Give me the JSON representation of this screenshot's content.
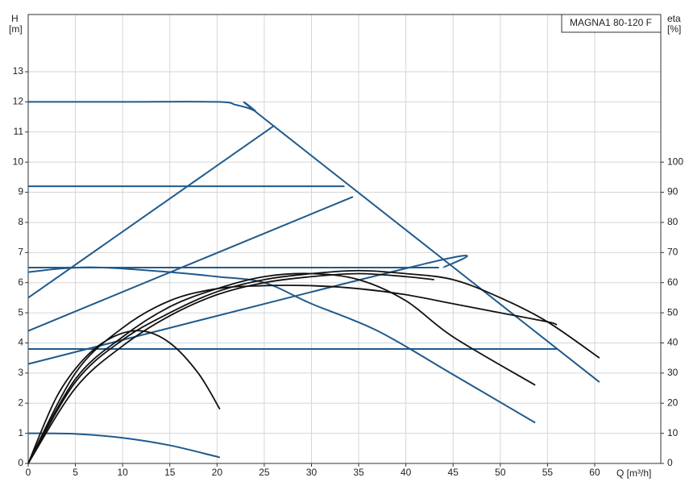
{
  "chart_data": {
    "type": "line",
    "title": "MAGNA1 80-120 F",
    "y_label": [
      "H",
      "[m]"
    ],
    "y2_label": [
      "eta",
      "[%]"
    ],
    "x_label": "Q [m³/h]",
    "xlim": [
      0,
      67
    ],
    "xticks": [
      0,
      5,
      10,
      15,
      20,
      25,
      30,
      35,
      40,
      45,
      50,
      55,
      60
    ],
    "ylim": [
      0,
      14.9
    ],
    "yticks": [
      0,
      1,
      2,
      3,
      4,
      5,
      6,
      7,
      8,
      9,
      10,
      11,
      12,
      13
    ],
    "y2lim": [
      0,
      149
    ],
    "y2ticks": [
      0,
      10,
      20,
      30,
      40,
      50,
      60,
      70,
      80,
      90,
      100
    ],
    "grid": true,
    "series": [
      {
        "color": "#1f5a8c",
        "x": [
          0,
          10,
          20,
          22,
          24,
          26,
          60.5
        ],
        "values": [
          12,
          12,
          12,
          11.9,
          11.7,
          11.2,
          2.7
        ]
      },
      {
        "color": "#1f5a8c",
        "x": [
          0,
          33.5
        ],
        "values": [
          9.2,
          9.2
        ]
      },
      {
        "color": "#1f5a8c",
        "x": [
          0,
          43.5
        ],
        "values": [
          6.5,
          6.5
        ]
      },
      {
        "color": "#1f5a8c",
        "x": [
          0,
          56
        ],
        "values": [
          3.8,
          3.8
        ]
      },
      {
        "color": "#1f5a8c",
        "x": [
          0,
          26
        ],
        "values": [
          5.5,
          11.2
        ]
      },
      {
        "color": "#1f5a8c",
        "x": [
          0,
          34.4
        ],
        "values": [
          4.4,
          8.85
        ]
      },
      {
        "color": "#1f5a8c",
        "x": [
          0,
          43,
          44
        ],
        "values": [
          3.3,
          6.7,
          6.5
        ]
      },
      {
        "color": "#1f5a8c",
        "x": [
          0,
          4,
          8,
          15,
          20,
          25,
          30,
          37,
          45,
          53.7
        ],
        "values": [
          6.35,
          6.48,
          6.5,
          6.35,
          6.2,
          6.0,
          5.3,
          4.4,
          2.95,
          1.35
        ]
      },
      {
        "color": "#1f5a8c",
        "x": [
          0,
          5,
          10,
          15,
          20.3
        ],
        "values": [
          1,
          0.98,
          0.85,
          0.6,
          0.2
        ]
      },
      {
        "color": "#111111",
        "axis": "y2",
        "x": [
          0,
          3,
          6,
          9,
          12,
          15,
          18,
          20.3
        ],
        "values": [
          0,
          22,
          35,
          42,
          44,
          40,
          30,
          18
        ]
      },
      {
        "color": "#111111",
        "axis": "y2",
        "x": [
          0,
          5,
          10,
          15,
          20,
          25,
          30,
          35,
          40,
          45,
          53.7
        ],
        "values": [
          0,
          28,
          42,
          52,
          58,
          62,
          63,
          61,
          54,
          42,
          26
        ]
      },
      {
        "color": "#111111",
        "axis": "y2",
        "x": [
          0,
          5,
          10,
          15,
          20,
          25,
          30,
          35,
          40,
          45,
          50,
          55,
          60.5
        ],
        "values": [
          0,
          27,
          41,
          50,
          57,
          61,
          63,
          64,
          63,
          61,
          55,
          47,
          35
        ]
      },
      {
        "color": "#111111",
        "axis": "y2",
        "x": [
          0,
          5,
          10,
          15,
          20,
          25,
          30,
          35,
          40,
          45,
          50,
          55,
          56
        ],
        "values": [
          0,
          30,
          45,
          54,
          58,
          59,
          59,
          58,
          56,
          53,
          50,
          47,
          46
        ]
      },
      {
        "color": "#111111",
        "axis": "y2",
        "x": [
          0,
          5,
          10,
          15,
          20,
          25,
          30,
          35,
          40,
          43
        ],
        "values": [
          0,
          25,
          39,
          49,
          56,
          60,
          62,
          63,
          62,
          61
        ]
      }
    ]
  }
}
